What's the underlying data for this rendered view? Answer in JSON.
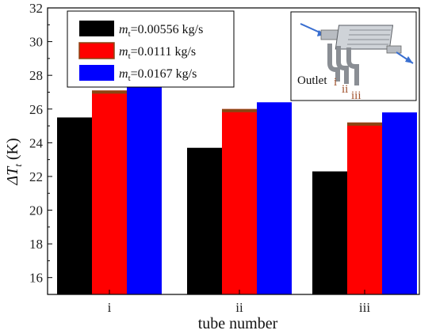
{
  "chart_data": {
    "type": "bar",
    "title": "",
    "xlabel": "tube number",
    "ylabel_symbol": "ΔT",
    "ylabel_subscript": "t",
    "ylabel_unit": " (K)",
    "categories": [
      "i",
      "ii",
      "iii"
    ],
    "ylim": [
      15,
      32
    ],
    "yticks": [
      16,
      18,
      20,
      22,
      24,
      26,
      28,
      30,
      32
    ],
    "series": [
      {
        "legend_symbol": "m",
        "legend_subscript": "t",
        "legend_value": "=0.00556 kg/s",
        "color": "#000000",
        "values": [
          25.5,
          23.7,
          22.3
        ]
      },
      {
        "legend_symbol": "m",
        "legend_subscript": "t",
        "legend_value": "=0.0111 kg/s",
        "color": "#ff0000",
        "edge": "#8b4513",
        "values": [
          27.1,
          26.0,
          25.2
        ]
      },
      {
        "legend_symbol": "m",
        "legend_subscript": "t",
        "legend_value": "=0.0167 kg/s",
        "color": "#0000ff",
        "values": [
          27.3,
          26.4,
          25.8
        ]
      }
    ],
    "grid": false,
    "legend_position": "top-left"
  },
  "inset": {
    "outlet_label": "Outlet",
    "tube_labels": [
      "i",
      "ii",
      "iii"
    ]
  }
}
